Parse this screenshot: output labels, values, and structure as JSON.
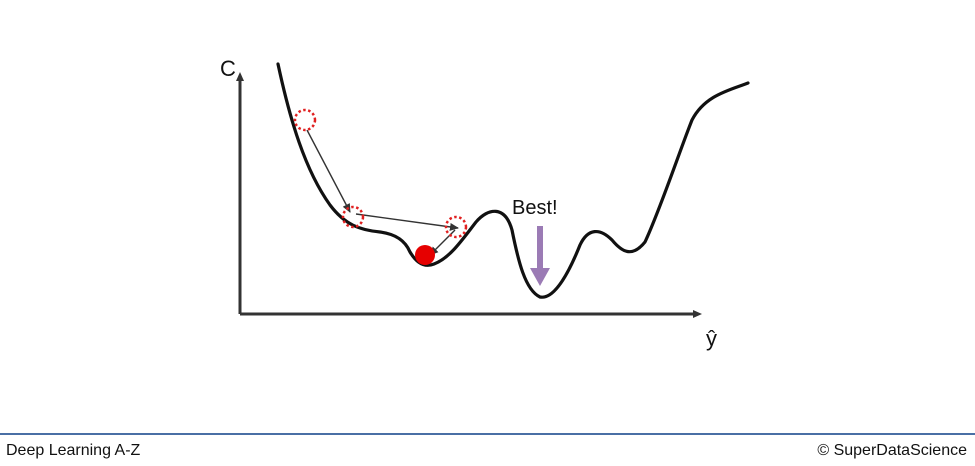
{
  "diagram": {
    "y_axis_label": "C",
    "x_axis_label": "ŷ",
    "best_label": "Best!",
    "colors": {
      "curve": "#111111",
      "axis": "#333333",
      "ball": "#e60000",
      "marker": "#e02020",
      "step_arrow": "#333333",
      "best_arrow": "#9b7bb5"
    },
    "icons": {
      "ball": "red-ball-icon",
      "step_marker": "dotted-circle-icon",
      "best_arrow": "down-arrow-icon"
    }
  },
  "footer": {
    "left": "Deep Learning A-Z",
    "right": "© SuperDataScience"
  }
}
